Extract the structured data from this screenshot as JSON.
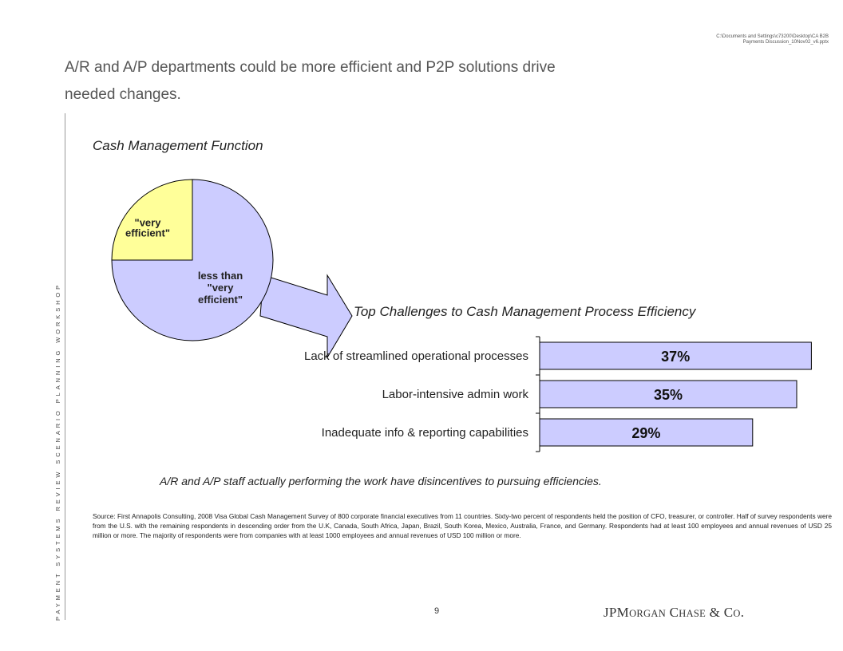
{
  "header": {
    "file_path_line1": "C:\\Documents and Settings\\c73200\\Desktop\\CA B2B",
    "file_path_line2": "Payments Discussion_10Nov02_v6.pptx"
  },
  "title_line1": "A/R and A/P departments could be more efficient and P2P solutions drive",
  "title_line2": "needed changes.",
  "side_text": "PAYMENT SYSTEMS REVIEW SCENARIO PLANNING WORKSHOP",
  "chart_data": [
    {
      "type": "pie",
      "title": "Cash Management Function",
      "slices": [
        {
          "label_lines": [
            "\"very",
            "efficient\""
          ],
          "value": 25,
          "color": "#ffff99"
        },
        {
          "label_lines": [
            "less than",
            "\"very",
            "efficient\""
          ],
          "value": 75,
          "color": "#ccccff"
        }
      ]
    },
    {
      "type": "bar",
      "orientation": "horizontal",
      "title": "Top Challenges to Cash Management Process Efficiency",
      "categories": [
        "Lack of streamlined operational processes",
        "Labor-intensive admin work",
        "Inadequate info & reporting capabilities"
      ],
      "values": [
        37,
        35,
        29
      ],
      "value_labels": [
        "37%",
        "35%",
        "29%"
      ],
      "bar_color": "#ccccff"
    }
  ],
  "conclusion": "A/R and A/P staff actually performing the work have disincentives to pursuing efficiencies.",
  "source": "Source:  First Annapolis Consulting, 2008 Visa Global Cash Management Survey of 800 corporate financial executives from 11 countries.  Sixty-two percent of respondents held the position of CFO, treasurer, or controller.  Half of survey respondents were from the U.S. with the remaining respondents in descending order from the U.K, Canada, South Africa, Japan, Brazil, South Korea, Mexico, Australia, France, and Germany.  Respondents had at least 100 employees and annual revenues of USD 25 million or more. The majority of respondents were from companies with at least 1000 employees and annual revenues of USD 100 million or more.",
  "page_number": "9",
  "logo": {
    "p1": "JPM",
    "p2": "ORGAN",
    "p3": " C",
    "p4": "HASE",
    "p5": " & C",
    "p6": "O",
    "p7": "."
  }
}
